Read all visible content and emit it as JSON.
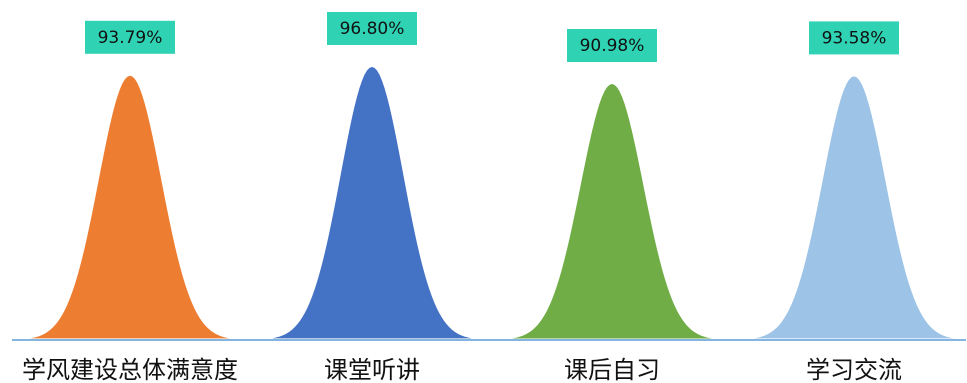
{
  "chart_data": {
    "type": "area",
    "categories": [
      "学风建设总体满意度",
      "课堂听讲",
      "课后自习",
      "学习交流"
    ],
    "values": [
      93.79,
      96.8,
      90.98,
      93.58
    ],
    "value_labels": [
      "93.79%",
      "96.80%",
      "90.98%",
      "93.58%"
    ],
    "colors": [
      "#ED7D31",
      "#4472C4",
      "#70AD47",
      "#9DC3E6"
    ],
    "label_box_color": "#2FD3B4",
    "axis_color": "#5B9BD5",
    "unit": "%"
  }
}
